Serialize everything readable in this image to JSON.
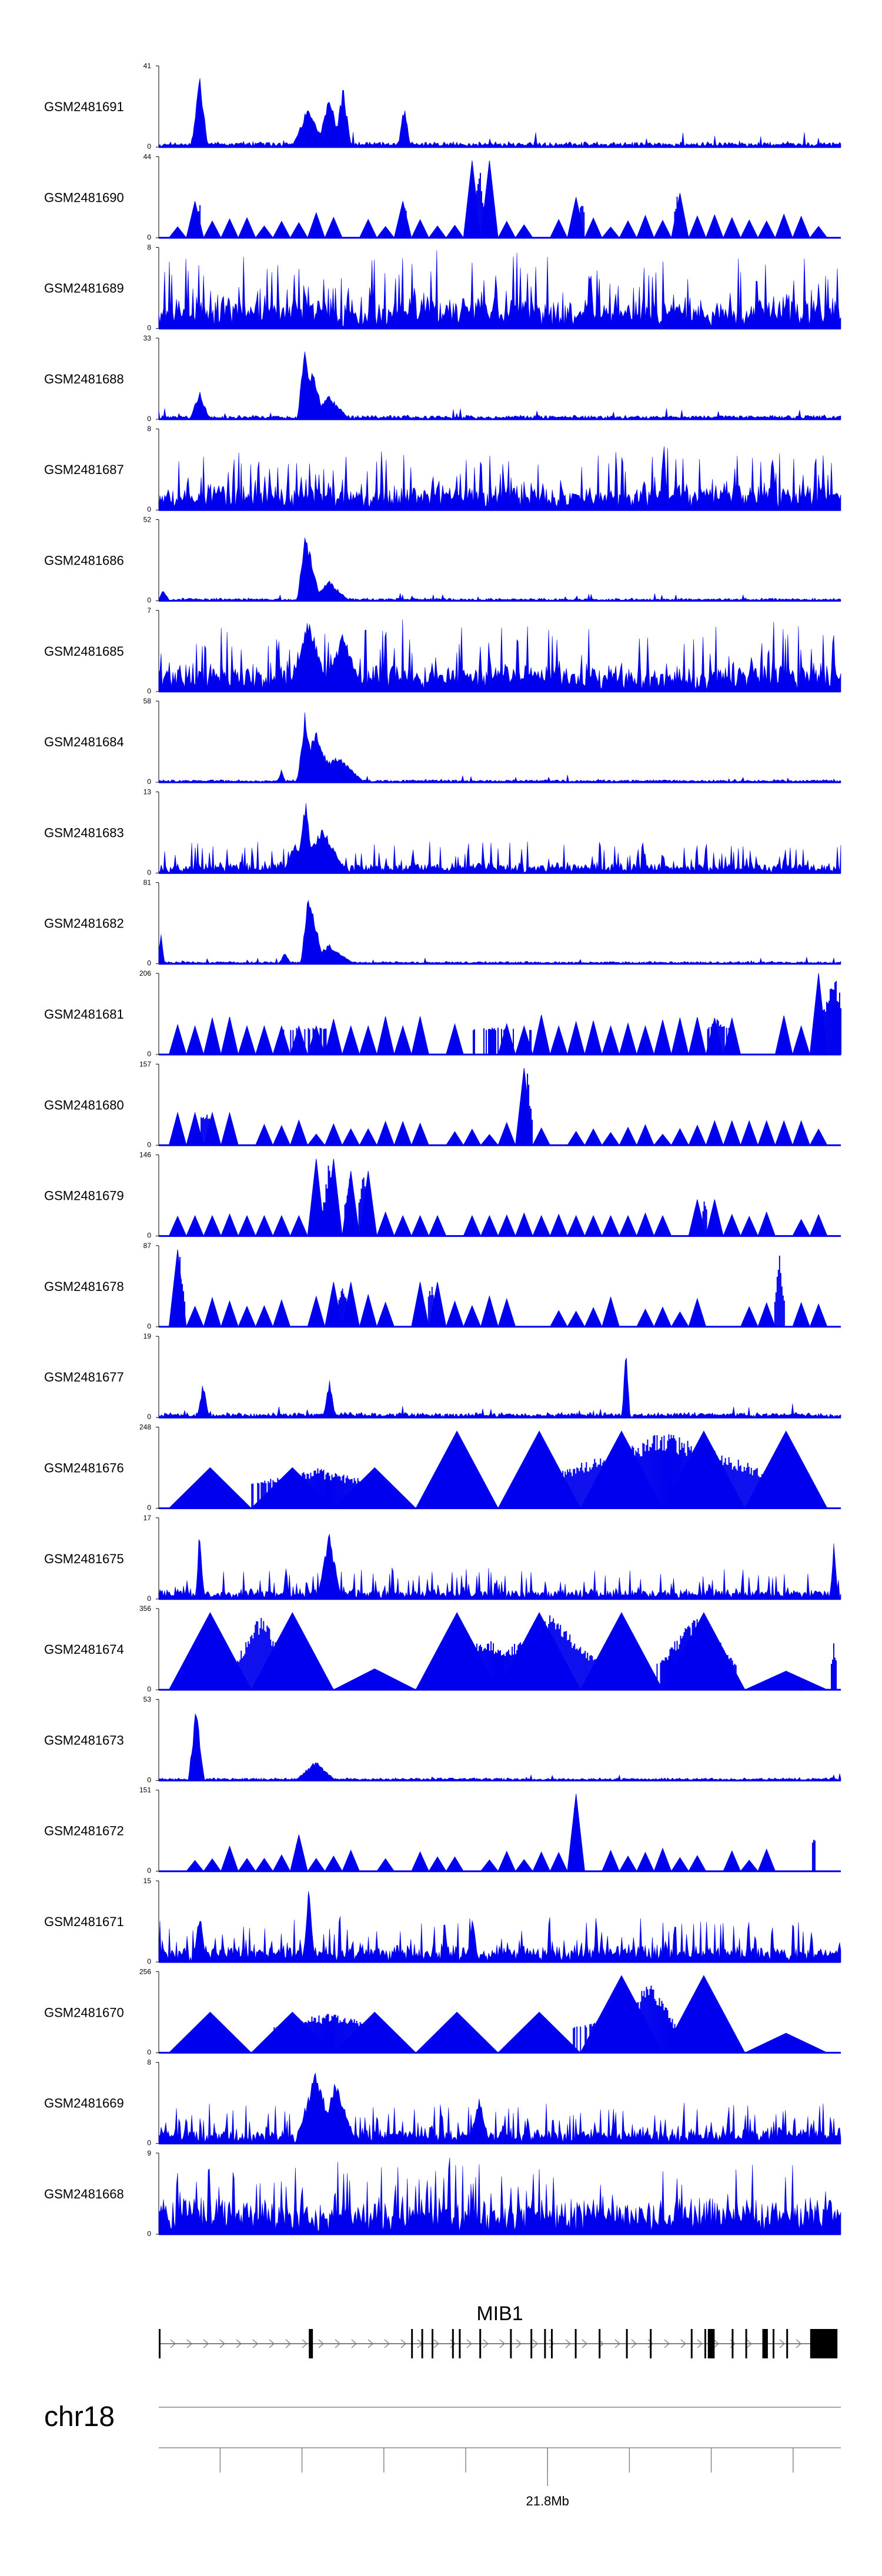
{
  "chart_data": {
    "type": "area",
    "title": "",
    "color": "#0000ee",
    "tracks": [
      {
        "name": "GSM2481691",
        "max": "41",
        "min": "0",
        "style": "peaks",
        "seed": 11,
        "base": 0.04,
        "noise": 0.16,
        "peaks": [
          [
            0.06,
            0.95,
            0.004
          ],
          [
            0.22,
            0.55,
            0.008
          ],
          [
            0.25,
            0.65,
            0.006
          ],
          [
            0.27,
            0.8,
            0.004
          ],
          [
            0.36,
            0.55,
            0.003
          ]
        ]
      },
      {
        "name": "GSM2481690",
        "max": "44",
        "min": "0",
        "style": "tri",
        "seed": 23,
        "base": 0.22,
        "noise": 0.18,
        "peaks": [
          [
            0.06,
            0.45,
            0.004
          ],
          [
            0.36,
            0.45,
            0.004
          ],
          [
            0.47,
            0.95,
            0.004
          ],
          [
            0.62,
            0.5,
            0.004
          ],
          [
            0.76,
            0.55,
            0.004
          ]
        ]
      },
      {
        "name": "GSM2481689",
        "max": "8",
        "min": "0",
        "style": "noise",
        "seed": 37,
        "base": 0.25,
        "noise": 0.75,
        "peaks": []
      },
      {
        "name": "GSM2481688",
        "max": "33",
        "min": "0",
        "style": "peaks",
        "seed": 41,
        "base": 0.03,
        "noise": 0.12,
        "peaks": [
          [
            0.06,
            0.35,
            0.005
          ],
          [
            0.215,
            1.0,
            0.004
          ],
          [
            0.225,
            0.7,
            0.006
          ],
          [
            0.25,
            0.3,
            0.01
          ]
        ]
      },
      {
        "name": "GSM2481687",
        "max": "8",
        "min": "0",
        "style": "noise",
        "seed": 53,
        "base": 0.2,
        "noise": 0.6,
        "peaks": [
          [
            0.74,
            0.95,
            0.002
          ],
          [
            0.9,
            0.8,
            0.002
          ]
        ]
      },
      {
        "name": "GSM2481686",
        "max": "52",
        "min": "0",
        "style": "peaks",
        "seed": 67,
        "base": 0.02,
        "noise": 0.08,
        "peaks": [
          [
            0.215,
            0.95,
            0.004
          ],
          [
            0.22,
            0.7,
            0.006
          ],
          [
            0.25,
            0.25,
            0.01
          ],
          [
            0.007,
            0.15,
            0.003
          ]
        ]
      },
      {
        "name": "GSM2481685",
        "max": "7",
        "min": "0",
        "style": "noise",
        "seed": 71,
        "base": 0.2,
        "noise": 0.7,
        "peaks": [
          [
            0.22,
            0.95,
            0.01
          ],
          [
            0.27,
            0.75,
            0.01
          ]
        ]
      },
      {
        "name": "GSM2481684",
        "max": "58",
        "min": "0",
        "style": "peaks",
        "seed": 83,
        "base": 0.02,
        "noise": 0.08,
        "peaks": [
          [
            0.215,
            0.95,
            0.004
          ],
          [
            0.23,
            0.65,
            0.01
          ],
          [
            0.26,
            0.35,
            0.014
          ],
          [
            0.18,
            0.18,
            0.002
          ]
        ]
      },
      {
        "name": "GSM2481683",
        "max": "13",
        "min": "0",
        "style": "noise",
        "seed": 97,
        "base": 0.05,
        "noise": 0.35,
        "peaks": [
          [
            0.215,
            0.95,
            0.004
          ],
          [
            0.24,
            0.6,
            0.012
          ],
          [
            0.2,
            0.4,
            0.006
          ]
        ]
      },
      {
        "name": "GSM2481682",
        "max": "81",
        "min": "0",
        "style": "peaks",
        "seed": 101,
        "base": 0.02,
        "noise": 0.07,
        "peaks": [
          [
            0.22,
            0.95,
            0.004
          ],
          [
            0.225,
            0.7,
            0.006
          ],
          [
            0.25,
            0.25,
            0.012
          ],
          [
            0.185,
            0.15,
            0.003
          ],
          [
            0.003,
            0.4,
            0.002
          ]
        ]
      },
      {
        "name": "GSM2481681",
        "max": "206",
        "min": "0",
        "style": "tri",
        "seed": 113,
        "base": 0.35,
        "noise": 0.1,
        "peaks": [
          [
            0.22,
            0.35,
            0.12
          ],
          [
            0.5,
            0.35,
            0.12
          ],
          [
            0.82,
            0.45,
            0.02
          ],
          [
            0.99,
            1.0,
            0.012
          ]
        ]
      },
      {
        "name": "GSM2481680",
        "max": "157",
        "min": "0",
        "style": "tri",
        "seed": 127,
        "base": 0.22,
        "noise": 0.12,
        "peaks": [
          [
            0.07,
            0.4,
            0.02
          ],
          [
            0.54,
            0.95,
            0.004
          ],
          [
            0.87,
            0.3,
            0.02
          ]
        ]
      },
      {
        "name": "GSM2481679",
        "max": "146",
        "min": "0",
        "style": "tri",
        "seed": 131,
        "base": 0.22,
        "noise": 0.12,
        "peaks": [
          [
            0.25,
            0.95,
            0.005
          ],
          [
            0.28,
            0.75,
            0.005
          ],
          [
            0.3,
            0.8,
            0.005
          ],
          [
            0.45,
            0.25,
            0.1
          ],
          [
            0.8,
            0.45,
            0.004
          ]
        ]
      },
      {
        "name": "GSM2481678",
        "max": "87",
        "min": "0",
        "style": "tri",
        "seed": 139,
        "base": 0.3,
        "noise": 0.12,
        "peaks": [
          [
            0.03,
            0.95,
            0.004
          ],
          [
            0.27,
            0.55,
            0.005
          ],
          [
            0.4,
            0.55,
            0.005
          ],
          [
            0.91,
            0.9,
            0.004
          ]
        ]
      },
      {
        "name": "GSM2481677",
        "max": "19",
        "min": "0",
        "style": "peaks",
        "seed": 149,
        "base": 0.04,
        "noise": 0.14,
        "peaks": [
          [
            0.065,
            0.45,
            0.003
          ],
          [
            0.25,
            0.5,
            0.003
          ],
          [
            0.685,
            0.95,
            0.002
          ]
        ]
      },
      {
        "name": "GSM2481676",
        "max": "248",
        "min": "0",
        "style": "bigtri",
        "seed": 151,
        "base": 0.2,
        "noise": 0.1,
        "peaks": [
          [
            0.23,
            0.5,
            0.08
          ],
          [
            0.74,
            0.95,
            0.1
          ]
        ]
      },
      {
        "name": "GSM2481675",
        "max": "17",
        "min": "0",
        "style": "noise",
        "seed": 163,
        "base": 0.05,
        "noise": 0.35,
        "peaks": [
          [
            0.06,
            0.95,
            0.002
          ],
          [
            0.25,
            0.85,
            0.006
          ],
          [
            0.99,
            0.75,
            0.002
          ]
        ]
      },
      {
        "name": "GSM2481674",
        "max": "356",
        "min": "0",
        "style": "bigtri",
        "seed": 173,
        "base": 0.25,
        "noise": 0.1,
        "peaks": [
          [
            0.15,
            0.95,
            0.02
          ],
          [
            0.48,
            0.65,
            0.04
          ],
          [
            0.57,
            0.95,
            0.04
          ],
          [
            0.79,
            0.95,
            0.03
          ],
          [
            0.99,
            0.6,
            0.003
          ]
        ]
      },
      {
        "name": "GSM2481673",
        "max": "53",
        "min": "0",
        "style": "peaks",
        "seed": 181,
        "base": 0.02,
        "noise": 0.08,
        "peaks": [
          [
            0.055,
            0.95,
            0.004
          ],
          [
            0.23,
            0.25,
            0.01
          ]
        ]
      },
      {
        "name": "GSM2481672",
        "max": "151",
        "min": "0",
        "style": "tri",
        "seed": 191,
        "base": 0.22,
        "noise": 0.1,
        "peaks": [
          [
            0.205,
            0.45,
            0.005
          ],
          [
            0.61,
            0.95,
            0.003
          ],
          [
            0.96,
            0.5,
            0.003
          ]
        ]
      },
      {
        "name": "GSM2481671",
        "max": "15",
        "min": "0",
        "style": "noise",
        "seed": 197,
        "base": 0.1,
        "noise": 0.5,
        "peaks": [
          [
            0.06,
            0.7,
            0.003
          ],
          [
            0.22,
            0.95,
            0.003
          ],
          [
            0.46,
            0.55,
            0.003
          ]
        ]
      },
      {
        "name": "GSM2481670",
        "max": "256",
        "min": "0",
        "style": "bigtri",
        "seed": 211,
        "base": 0.2,
        "noise": 0.1,
        "peaks": [
          [
            0.25,
            0.5,
            0.08
          ],
          [
            0.66,
            0.45,
            0.06
          ],
          [
            0.72,
            0.95,
            0.02
          ]
        ]
      },
      {
        "name": "GSM2481669",
        "max": "8",
        "min": "0",
        "style": "noise",
        "seed": 223,
        "base": 0.1,
        "noise": 0.45,
        "peaks": [
          [
            0.23,
            0.95,
            0.01
          ],
          [
            0.26,
            0.8,
            0.01
          ],
          [
            0.47,
            0.6,
            0.005
          ]
        ]
      },
      {
        "name": "GSM2481668",
        "max": "9",
        "min": "0",
        "style": "noise",
        "seed": 227,
        "base": 0.3,
        "noise": 0.7,
        "peaks": []
      }
    ],
    "gene": {
      "name": "MIB1",
      "exons": [
        0.0,
        0.222,
        0.37,
        0.385,
        0.4,
        0.43,
        0.44,
        0.47,
        0.515,
        0.545,
        0.565,
        0.575,
        0.61,
        0.645,
        0.685,
        0.72,
        0.78,
        0.8,
        0.84,
        0.86,
        0.885,
        0.9,
        0.92
      ],
      "thick_exons": [
        [
          0.22,
          0.226
        ],
        [
          0.805,
          0.815
        ],
        [
          0.885,
          0.893
        ],
        [
          0.955,
          0.995
        ]
      ]
    },
    "chromosome": "chr18",
    "axis": {
      "label": "21.8Mb",
      "label_position": 0.57,
      "ticks": [
        0.09,
        0.21,
        0.33,
        0.45,
        0.57,
        0.69,
        0.81,
        0.93
      ]
    }
  }
}
